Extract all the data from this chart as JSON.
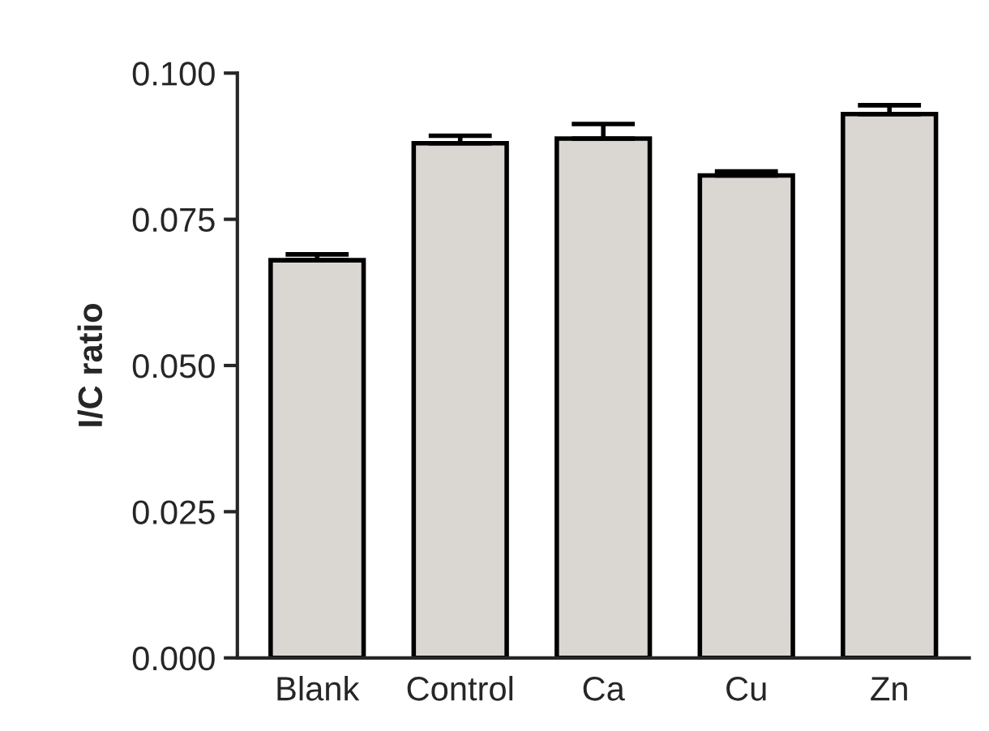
{
  "chart_data": {
    "type": "bar",
    "ylabel": "I/C ratio",
    "categories": [
      "Blank",
      "Control",
      "Ca",
      "Cu",
      "Zn"
    ],
    "values": [
      0.068,
      0.088,
      0.0888,
      0.0825,
      0.093
    ],
    "errors": [
      [
        0.068,
        0.069
      ],
      [
        0.088,
        0.0893
      ],
      [
        0.0888,
        0.0913
      ],
      [
        0.0825,
        0.0832
      ],
      [
        0.093,
        0.0945
      ]
    ],
    "color": "#dad7d3",
    "ylim": [
      0,
      0.1
    ],
    "yticks": [
      {
        "value": 0,
        "label": "0.000"
      },
      {
        "value": 0.025,
        "label": "0.025"
      },
      {
        "value": 0.05,
        "label": "0.050"
      },
      {
        "value": 0.075,
        "label": "0.075"
      },
      {
        "value": 0.1,
        "label": "0.100"
      }
    ],
    "grid": false,
    "legend": false
  }
}
